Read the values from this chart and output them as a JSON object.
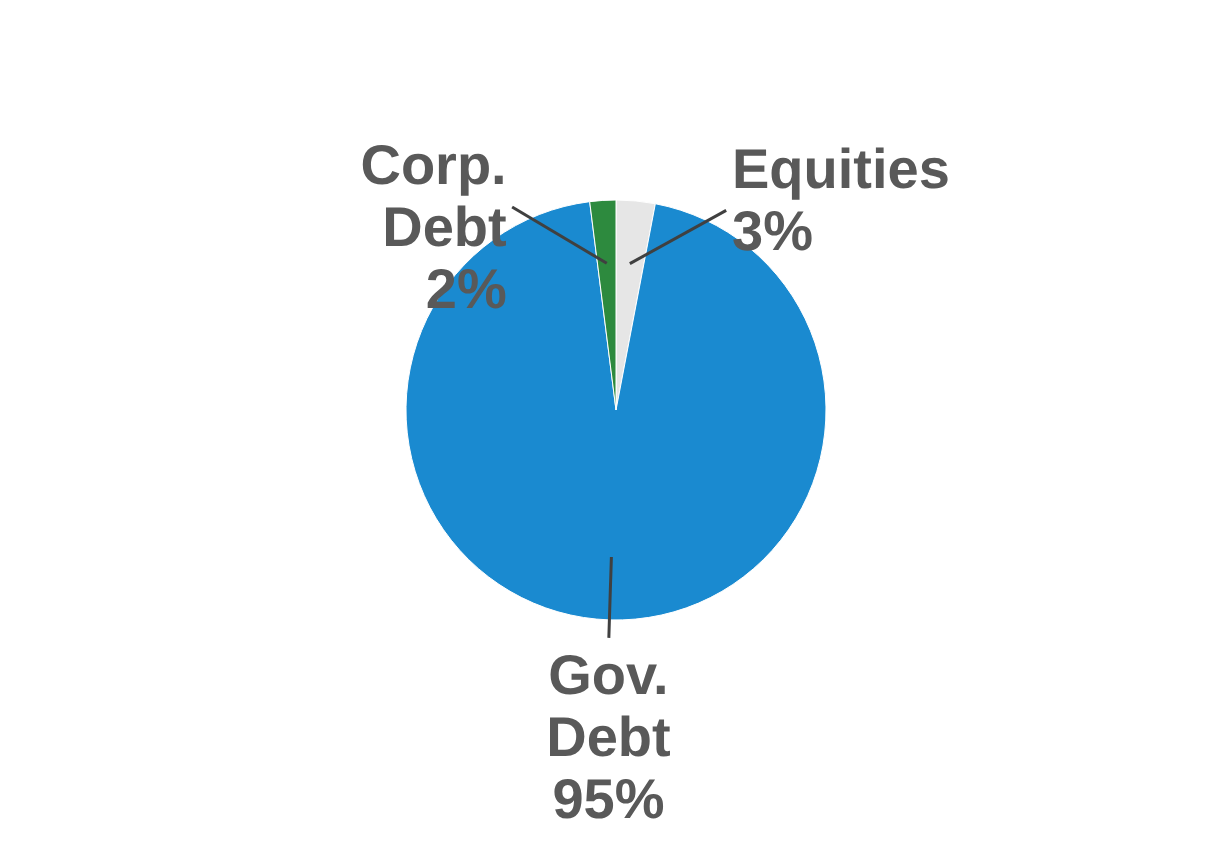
{
  "chart_data": {
    "type": "pie",
    "categories": [
      "Equities",
      "Gov. Debt",
      "Corp. Debt"
    ],
    "values": [
      3,
      95,
      2
    ],
    "colors": [
      "#e6e6e6",
      "#1a8ad0",
      "#2d8a3e"
    ],
    "value_labels": [
      "3%",
      "95%",
      "2%"
    ]
  }
}
